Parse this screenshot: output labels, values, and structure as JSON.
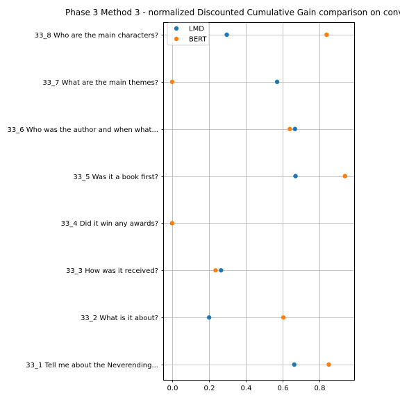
{
  "chart_data": {
    "type": "scatter",
    "title": "Phase 3 Method 3 - normalized Discounted Cumulative Gain comparison on conv",
    "xlabel": "",
    "ylabel": "",
    "xlim": [
      -0.045,
      0.99
    ],
    "xticks": [
      "0.0",
      "0.2",
      "0.4",
      "0.6",
      "0.8"
    ],
    "xtick_values": [
      0.0,
      0.2,
      0.4,
      0.6,
      0.8
    ],
    "grid": true,
    "legend_position": "top-left",
    "categories": [
      "33_8 Who are the main characters?",
      "33_7 What are the main themes?",
      "33_6 Who was the author and when what...",
      "33_5 Was it a book first?",
      "33_4 Did it win any awards?",
      "33_3 How was it received?",
      "33_2 What is it about?",
      "33_1 Tell me about the Neverending..."
    ],
    "series": [
      {
        "name": "LMD",
        "color": "#1f77b4",
        "values": [
          0.297,
          0.571,
          0.668,
          0.671,
          0.0,
          0.266,
          0.201,
          0.664
        ]
      },
      {
        "name": "BERT",
        "color": "#ff7f0e",
        "values": [
          0.84,
          0.0,
          0.64,
          0.94,
          0.0,
          0.236,
          0.605,
          0.852
        ]
      }
    ]
  }
}
